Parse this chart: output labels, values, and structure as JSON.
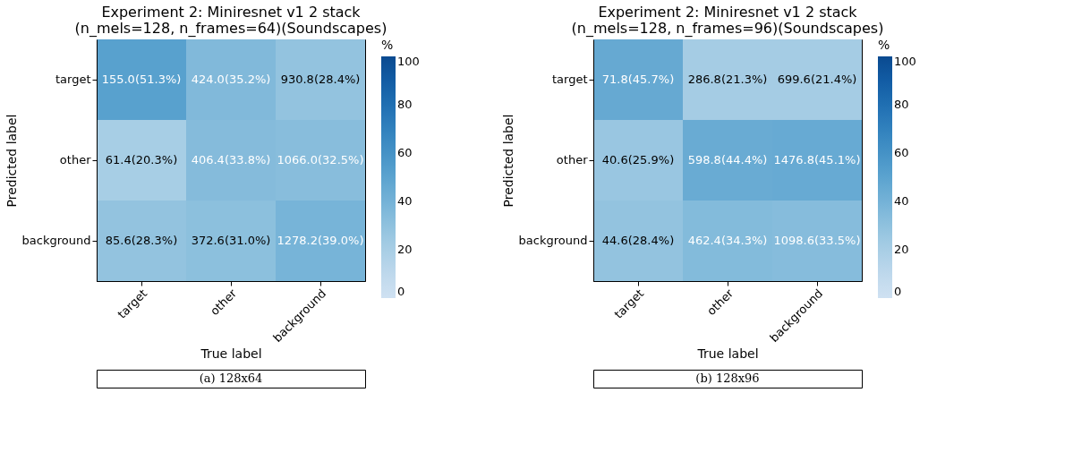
{
  "chart_data": [
    {
      "type": "heatmap",
      "title": "Experiment 2: Miniresnet v1 2 stack\n(n_mels=128, n_frames=64)(Soundscapes)",
      "xlabel": "True label",
      "ylabel": "Predicted label",
      "clabel": "%",
      "categories": [
        "target",
        "other",
        "background"
      ],
      "y_categories": [
        "target",
        "other",
        "background"
      ],
      "cells": [
        [
          51.3,
          35.2,
          28.4
        ],
        [
          20.3,
          33.8,
          32.5
        ],
        [
          28.3,
          31.0,
          39.0
        ]
      ],
      "cell_labels": [
        [
          "155.0(51.3%)",
          "424.0(35.2%)",
          "930.8(28.4%)"
        ],
        [
          "61.4(20.3%)",
          "406.4(33.8%)",
          "1066.0(32.5%)"
        ],
        [
          "85.6(28.3%)",
          "372.6(31.0%)",
          "1278.2(39.0%)"
        ]
      ],
      "clim": [
        0,
        100
      ],
      "cticks": [
        0,
        20,
        40,
        60,
        80,
        100
      ],
      "annotations": [
        "(a) 128x64"
      ]
    },
    {
      "type": "heatmap",
      "title": "Experiment 2: Miniresnet v1 2 stack\n(n_mels=128, n_frames=96)(Soundscapes)",
      "xlabel": "True label",
      "ylabel": "Predicted label",
      "clabel": "%",
      "categories": [
        "target",
        "other",
        "background"
      ],
      "y_categories": [
        "target",
        "other",
        "background"
      ],
      "cells": [
        [
          45.7,
          21.3,
          21.4
        ],
        [
          25.9,
          44.4,
          45.1
        ],
        [
          28.4,
          34.3,
          33.5
        ]
      ],
      "cell_labels": [
        [
          "71.8(45.7%)",
          "286.8(21.3%)",
          "699.6(21.4%)"
        ],
        [
          "40.6(25.9%)",
          "598.8(44.4%)",
          "1476.8(45.1%)"
        ],
        [
          "44.6(28.4%)",
          "462.4(34.3%)",
          "1098.6(33.5%)"
        ]
      ],
      "clim": [
        0,
        100
      ],
      "cticks": [
        0,
        20,
        40,
        60,
        80,
        100
      ],
      "annotations": [
        "(b) 128x96"
      ]
    }
  ]
}
